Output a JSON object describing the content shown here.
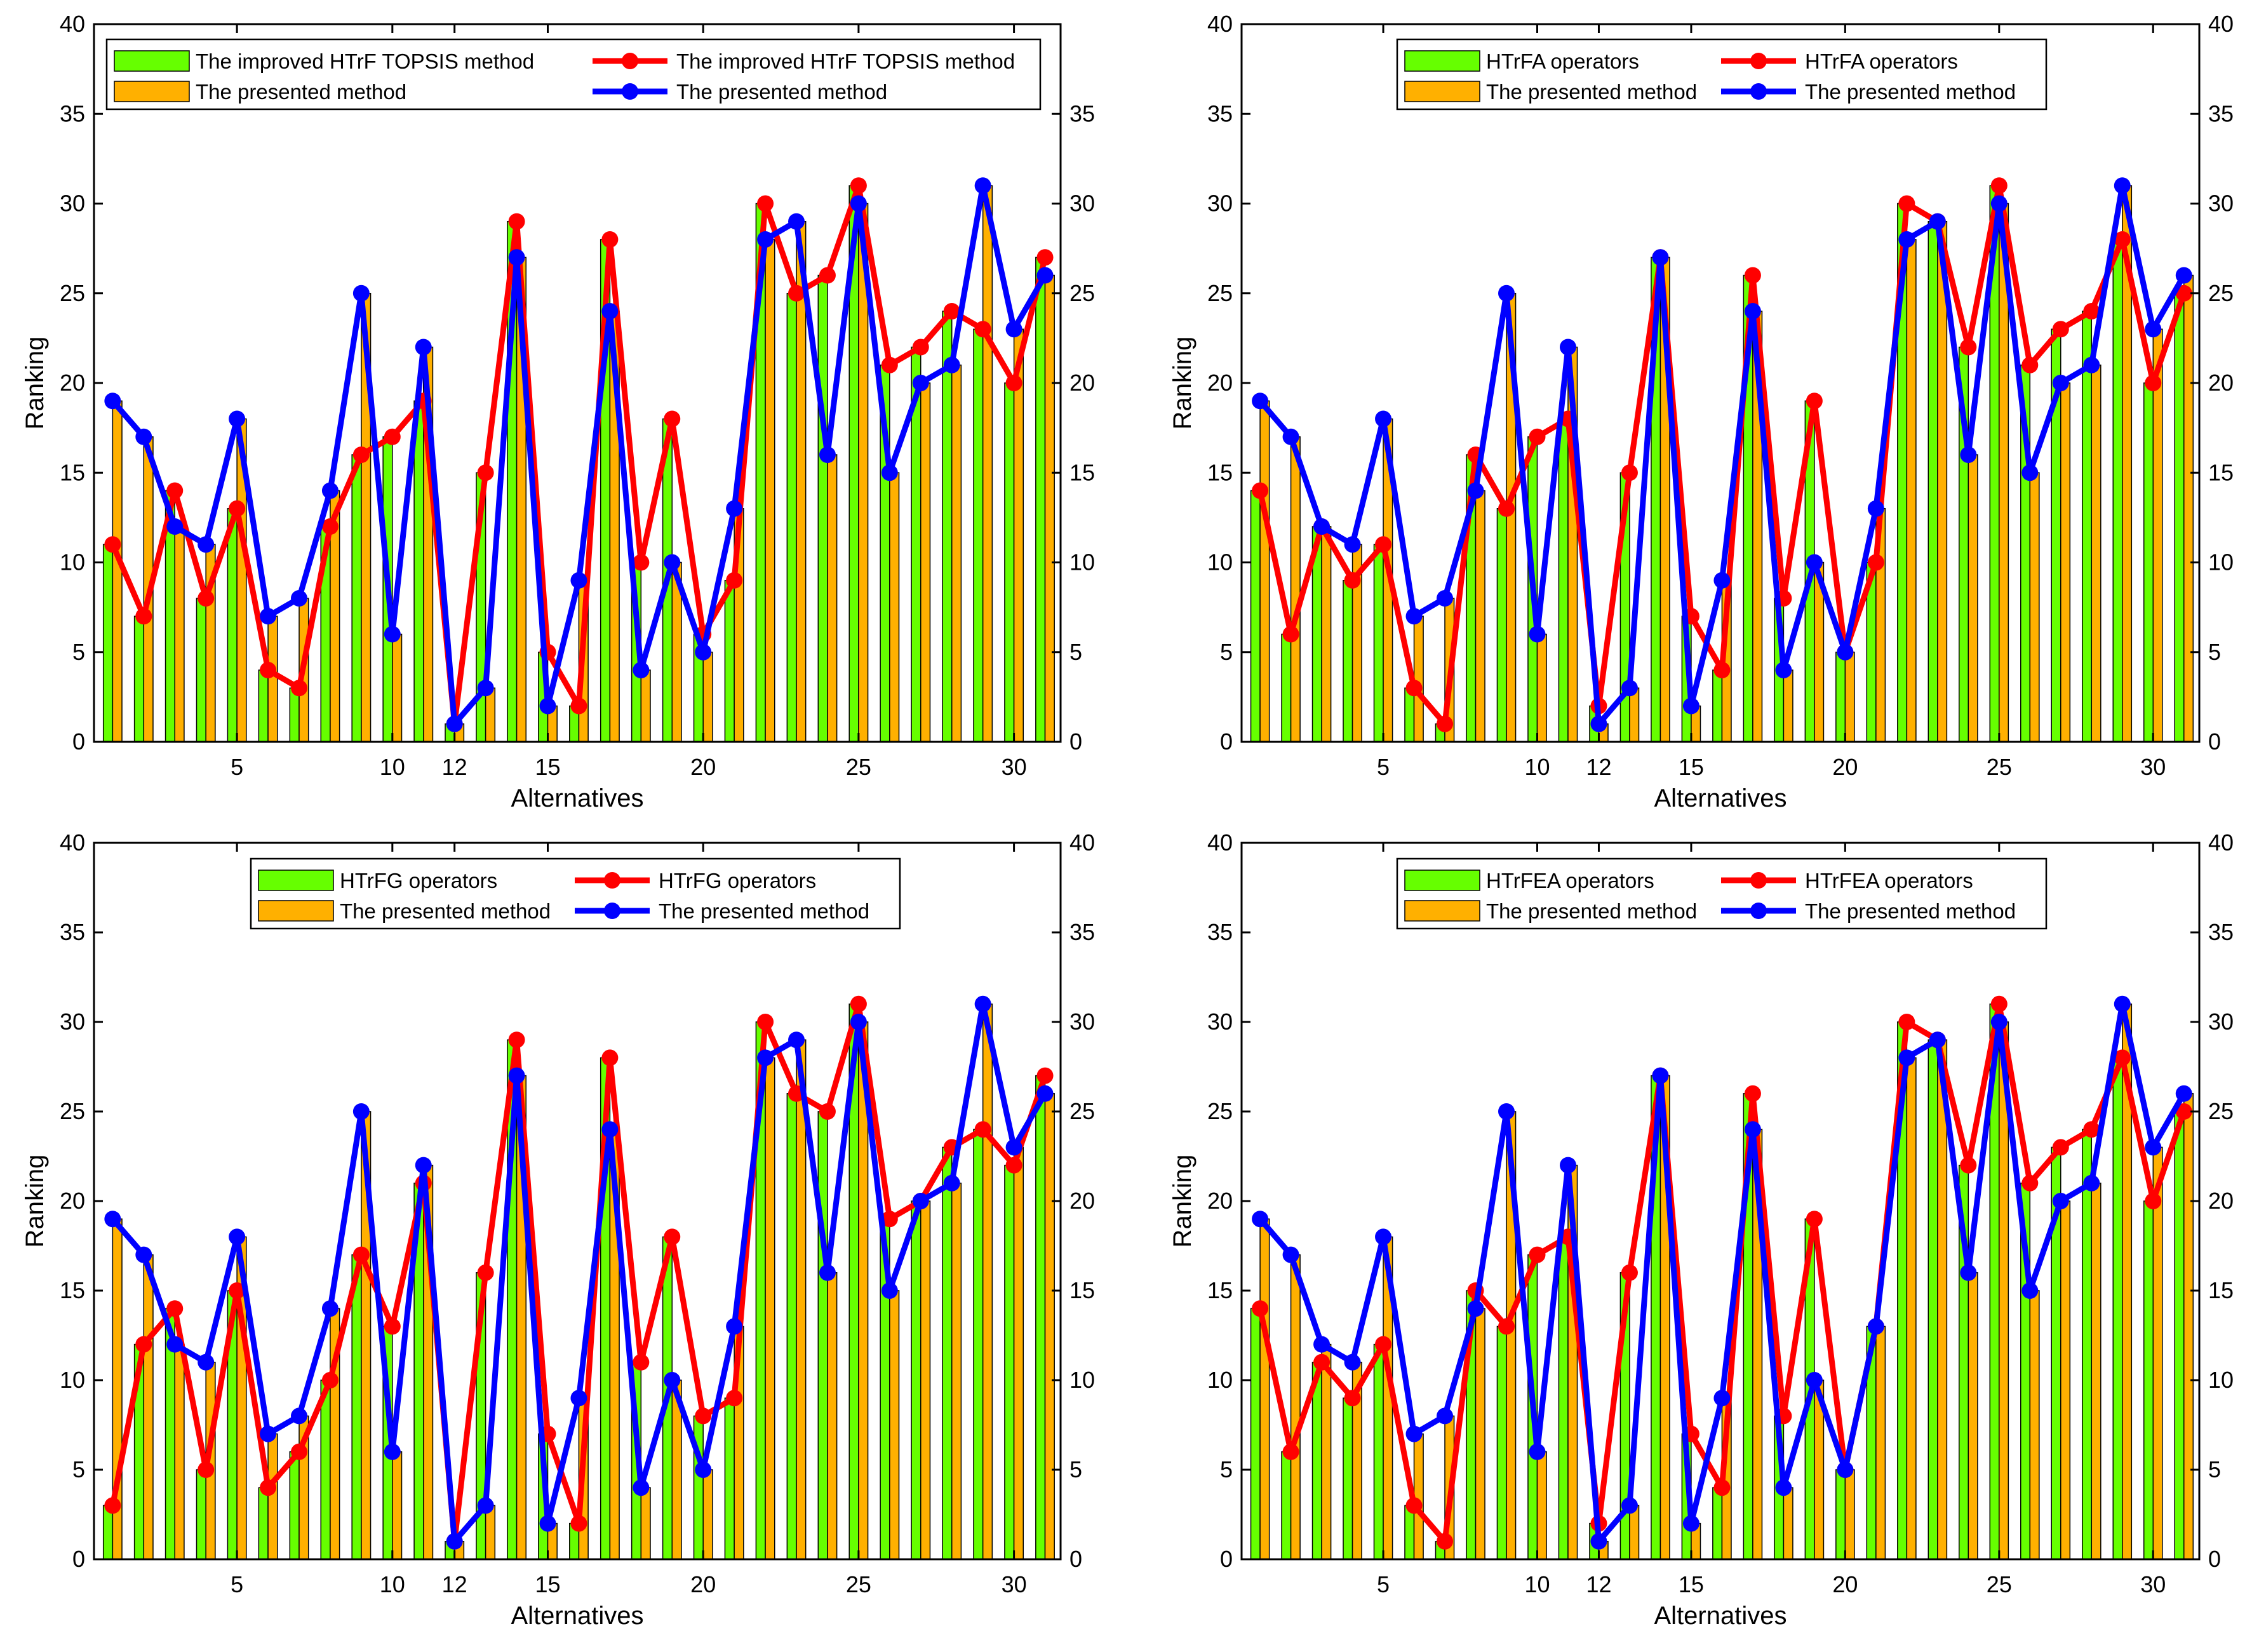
{
  "colors": {
    "green_bar": "#66ff00",
    "orange_bar": "#ffb000",
    "red_line": "#ff0000",
    "blue_line": "#0000ff"
  },
  "chart_data": [
    {
      "type": "bar+line",
      "title": "",
      "xlabel": "Alternatives",
      "ylabel": "Ranking",
      "ylim": [
        0,
        40
      ],
      "yticks": [
        0,
        5,
        10,
        15,
        20,
        25,
        30,
        35,
        40
      ],
      "y2ticks": [
        0,
        5,
        10,
        15,
        20,
        25,
        30,
        35
      ],
      "xticks": [
        5,
        10,
        12,
        15,
        20,
        25,
        30
      ],
      "legend_position": "top-left",
      "legend": {
        "bar_a": "The improved HTrF TOPSIS method",
        "bar_b": "The presented method",
        "line_a": "The improved HTrF TOPSIS method",
        "line_b": "The presented method"
      },
      "series": [
        {
          "name": "The improved HTrF TOPSIS method",
          "kind": "bar+line",
          "values": [
            11,
            7,
            14,
            8,
            13,
            4,
            3,
            12,
            16,
            17,
            19,
            1,
            15,
            29,
            5,
            2,
            28,
            10,
            18,
            6,
            9,
            30,
            25,
            26,
            31,
            21,
            22,
            24,
            23,
            20,
            27
          ]
        },
        {
          "name": "The presented method",
          "kind": "bar+line",
          "values": [
            19,
            17,
            12,
            11,
            18,
            7,
            8,
            14,
            25,
            6,
            22,
            1,
            3,
            27,
            2,
            9,
            24,
            4,
            10,
            5,
            13,
            28,
            29,
            16,
            30,
            15,
            20,
            21,
            31,
            23,
            26
          ]
        }
      ]
    },
    {
      "type": "bar+line",
      "title": "",
      "xlabel": "Alternatives",
      "ylabel": "Ranking",
      "ylim": [
        0,
        40
      ],
      "yticks": [
        0,
        5,
        10,
        15,
        20,
        25,
        30,
        35,
        40
      ],
      "y2ticks": [
        0,
        5,
        10,
        15,
        20,
        25,
        30,
        35,
        40
      ],
      "xticks": [
        5,
        10,
        12,
        15,
        20,
        25,
        30
      ],
      "legend_position": "top-center",
      "legend": {
        "bar_a": "HTrFA operators",
        "bar_b": "The presented method",
        "line_a": "HTrFA operators",
        "line_b": "The presented method"
      },
      "series": [
        {
          "name": "HTrFA operators",
          "kind": "bar+line",
          "values": [
            14,
            6,
            12,
            9,
            11,
            3,
            1,
            16,
            13,
            17,
            18,
            2,
            15,
            27,
            7,
            4,
            26,
            8,
            19,
            5,
            10,
            30,
            29,
            22,
            31,
            21,
            23,
            24,
            28,
            20,
            25
          ]
        },
        {
          "name": "The presented method",
          "kind": "bar+line",
          "values": [
            19,
            17,
            12,
            11,
            18,
            7,
            8,
            14,
            25,
            6,
            22,
            1,
            3,
            27,
            2,
            9,
            24,
            4,
            10,
            5,
            13,
            28,
            29,
            16,
            30,
            15,
            20,
            21,
            31,
            23,
            26
          ]
        }
      ]
    },
    {
      "type": "bar+line",
      "title": "",
      "xlabel": "Alternatives",
      "ylabel": "Ranking",
      "ylim": [
        0,
        40
      ],
      "yticks": [
        0,
        5,
        10,
        15,
        20,
        25,
        30,
        35,
        40
      ],
      "y2ticks": [
        0,
        5,
        10,
        15,
        20,
        25,
        30,
        35,
        40
      ],
      "xticks": [
        5,
        10,
        12,
        15,
        20,
        25,
        30
      ],
      "legend_position": "top-center",
      "legend": {
        "bar_a": "HTrFG operators",
        "bar_b": "The presented method",
        "line_a": "HTrFG operators",
        "line_b": "The presented method"
      },
      "series": [
        {
          "name": "HTrFG operators",
          "kind": "bar+line",
          "values": [
            3,
            12,
            14,
            5,
            15,
            4,
            6,
            10,
            17,
            13,
            21,
            1,
            16,
            29,
            7,
            2,
            28,
            11,
            18,
            8,
            9,
            30,
            26,
            25,
            31,
            19,
            20,
            23,
            24,
            22,
            27
          ]
        },
        {
          "name": "The presented method",
          "kind": "bar+line",
          "values": [
            19,
            17,
            12,
            11,
            18,
            7,
            8,
            14,
            25,
            6,
            22,
            1,
            3,
            27,
            2,
            9,
            24,
            4,
            10,
            5,
            13,
            28,
            29,
            16,
            30,
            15,
            20,
            21,
            31,
            23,
            26
          ]
        }
      ]
    },
    {
      "type": "bar+line",
      "title": "",
      "xlabel": "Alternatives",
      "ylabel": "Ranking",
      "ylim": [
        0,
        40
      ],
      "yticks": [
        0,
        5,
        10,
        15,
        20,
        25,
        30,
        35,
        40
      ],
      "y2ticks": [
        0,
        5,
        10,
        15,
        20,
        25,
        30,
        35,
        40
      ],
      "xticks": [
        5,
        10,
        12,
        15,
        20,
        25,
        30
      ],
      "legend_position": "top-center",
      "legend": {
        "bar_a": "HTrFEA operators",
        "bar_b": "The presented method",
        "line_a": "HTrFEA operators",
        "line_b": "The presented method"
      },
      "series": [
        {
          "name": "HTrFEA operators",
          "kind": "bar+line",
          "values": [
            14,
            6,
            11,
            9,
            12,
            3,
            1,
            15,
            13,
            17,
            18,
            2,
            16,
            27,
            7,
            4,
            26,
            8,
            19,
            5,
            13,
            30,
            29,
            22,
            31,
            21,
            23,
            24,
            28,
            20,
            25
          ]
        },
        {
          "name": "The presented method",
          "kind": "bar+line",
          "values": [
            19,
            17,
            12,
            11,
            18,
            7,
            8,
            14,
            25,
            6,
            22,
            1,
            3,
            27,
            2,
            9,
            24,
            4,
            10,
            5,
            13,
            28,
            29,
            16,
            30,
            15,
            20,
            21,
            31,
            23,
            26
          ]
        }
      ]
    }
  ]
}
